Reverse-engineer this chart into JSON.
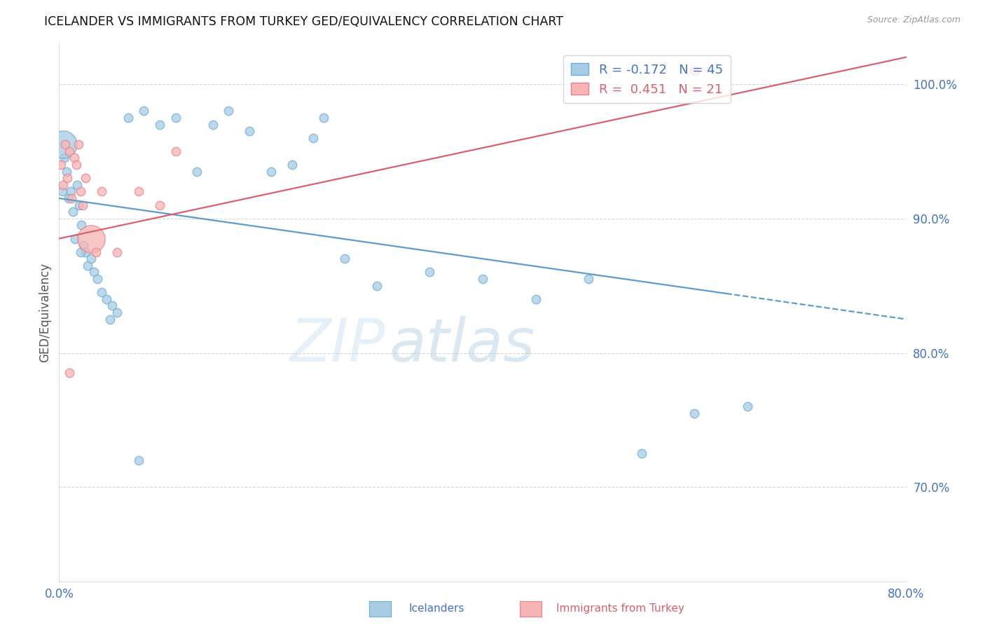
{
  "title": "ICELANDER VS IMMIGRANTS FROM TURKEY GED/EQUIVALENCY CORRELATION CHART",
  "source": "Source: ZipAtlas.com",
  "ylabel": "GED/Equivalency",
  "xlim": [
    0.0,
    80.0
  ],
  "ylim": [
    63.0,
    103.0
  ],
  "yticks": [
    70.0,
    80.0,
    90.0,
    100.0
  ],
  "xticks": [
    0.0,
    10.0,
    20.0,
    30.0,
    40.0,
    50.0,
    60.0,
    70.0,
    80.0
  ],
  "legend_r_blue": "-0.172",
  "legend_n_blue": "45",
  "legend_r_pink": "0.451",
  "legend_n_pink": "21",
  "blue_color": "#a8cce4",
  "pink_color": "#f8b4b4",
  "blue_edge_color": "#6aaed6",
  "pink_edge_color": "#e8808a",
  "blue_line_color": "#5b9dc9",
  "pink_line_color": "#d9606e",
  "watermark_top": "ZIP",
  "watermark_bottom": "atlas",
  "blue_line_y_at_0": 91.5,
  "blue_line_y_at_80": 82.5,
  "blue_solid_end_x": 63.0,
  "pink_line_y_at_0": 88.5,
  "pink_line_y_at_80": 102.0,
  "blue_scatter_x": [
    0.3,
    0.5,
    0.7,
    0.9,
    1.1,
    1.3,
    1.5,
    1.7,
    1.9,
    2.1,
    2.3,
    2.5,
    2.7,
    3.0,
    3.3,
    3.6,
    4.0,
    4.5,
    5.0,
    5.5,
    6.5,
    8.0,
    9.5,
    11.0,
    13.0,
    14.5,
    16.0,
    18.0,
    20.0,
    22.0,
    24.0,
    25.0,
    27.0,
    30.0,
    35.0,
    40.0,
    45.0,
    50.0,
    55.0,
    60.0,
    65.0,
    0.4,
    2.0,
    4.8,
    7.5
  ],
  "blue_scatter_y": [
    92.0,
    94.5,
    93.5,
    91.5,
    92.0,
    90.5,
    88.5,
    92.5,
    91.0,
    89.5,
    88.0,
    87.5,
    86.5,
    87.0,
    86.0,
    85.5,
    84.5,
    84.0,
    83.5,
    83.0,
    97.5,
    98.0,
    97.0,
    97.5,
    93.5,
    97.0,
    98.0,
    96.5,
    93.5,
    94.0,
    96.0,
    97.5,
    87.0,
    85.0,
    86.0,
    85.5,
    84.0,
    85.5,
    72.5,
    75.5,
    76.0,
    95.5,
    87.5,
    82.5,
    72.0
  ],
  "blue_scatter_size": [
    80,
    80,
    80,
    80,
    80,
    80,
    80,
    80,
    80,
    80,
    80,
    80,
    80,
    80,
    80,
    80,
    80,
    80,
    80,
    80,
    80,
    80,
    80,
    80,
    80,
    80,
    80,
    80,
    80,
    80,
    80,
    80,
    80,
    80,
    80,
    80,
    80,
    80,
    80,
    80,
    80,
    800,
    80,
    80,
    80
  ],
  "pink_scatter_x": [
    0.2,
    0.4,
    0.6,
    0.8,
    1.0,
    1.2,
    1.4,
    1.6,
    1.8,
    2.0,
    2.2,
    2.5,
    3.0,
    3.5,
    4.0,
    5.5,
    7.5,
    9.5,
    11.0,
    60.0,
    1.0
  ],
  "pink_scatter_y": [
    94.0,
    92.5,
    95.5,
    93.0,
    95.0,
    91.5,
    94.5,
    94.0,
    95.5,
    92.0,
    91.0,
    93.0,
    88.5,
    87.5,
    92.0,
    87.5,
    92.0,
    91.0,
    95.0,
    101.0,
    78.5
  ],
  "pink_scatter_size": [
    80,
    80,
    80,
    80,
    80,
    80,
    80,
    80,
    80,
    80,
    80,
    80,
    800,
    80,
    80,
    80,
    80,
    80,
    80,
    80,
    80
  ]
}
